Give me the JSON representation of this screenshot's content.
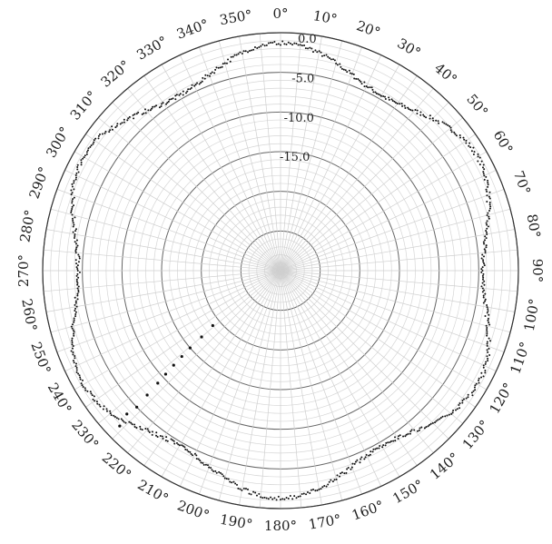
{
  "chart_data": {
    "type": "scatter",
    "projection": "polar",
    "theta_zero": "top",
    "theta_direction": "clockwise",
    "theta_ticks": [
      "0°",
      "10°",
      "20°",
      "30°",
      "40°",
      "50°",
      "60°",
      "70°",
      "80°",
      "90°",
      "100°",
      "110°",
      "120°",
      "130°",
      "140°",
      "150°",
      "160°",
      "170°",
      "180°",
      "190°",
      "200°",
      "210°",
      "220°",
      "230°",
      "240°",
      "250°",
      "260°",
      "270°",
      "280°",
      "290°",
      "300°",
      "310°",
      "320°",
      "330°",
      "340°",
      "350°"
    ],
    "r_ticks": [
      {
        "value": 0,
        "label": "0.0"
      },
      {
        "value": -5,
        "label": "-5.0"
      },
      {
        "value": -10,
        "label": "-10.0"
      },
      {
        "value": -15,
        "label": "-15.0"
      }
    ],
    "rlim": [
      -30,
      0
    ],
    "r_gridlines": [
      0,
      -5,
      -10,
      -15,
      -20,
      -25
    ],
    "theta_gridline_step_deg": 5,
    "grid": true,
    "series": [
      {
        "color": "#111111",
        "pattern": {
          "form": "r = a + b*cos(6*theta)",
          "a": -2.9,
          "b": 1.6,
          "noise": 0.25
        },
        "points": [
          [
            0,
            -4.3
          ],
          [
            15,
            -3.8
          ],
          [
            30,
            -1.3
          ],
          [
            45,
            -4.0
          ],
          [
            60,
            -3.5
          ],
          [
            90,
            -1.3
          ],
          [
            120,
            -4.3
          ],
          [
            150,
            -1.3
          ],
          [
            180,
            -4.4
          ],
          [
            195,
            -3.9
          ],
          [
            210,
            -1.4
          ],
          [
            240,
            -4.3
          ],
          [
            270,
            -1.4
          ],
          [
            300,
            -4.3
          ],
          [
            330,
            -1.4
          ],
          [
            345,
            -3.9
          ]
        ]
      },
      {
        "color": "#111111",
        "points": [
          [
            226,
            -1.8
          ],
          [
            227,
            -3.5
          ],
          [
            226.5,
            -5.0
          ],
          [
            227,
            -7.0
          ],
          [
            227.5,
            -9.0
          ],
          [
            228,
            -10.5
          ],
          [
            228.5,
            -12.0
          ],
          [
            229,
            -13.5
          ],
          [
            229.5,
            -15.0
          ],
          [
            230,
            -17.0
          ],
          [
            231,
            -19.0
          ]
        ]
      }
    ]
  }
}
